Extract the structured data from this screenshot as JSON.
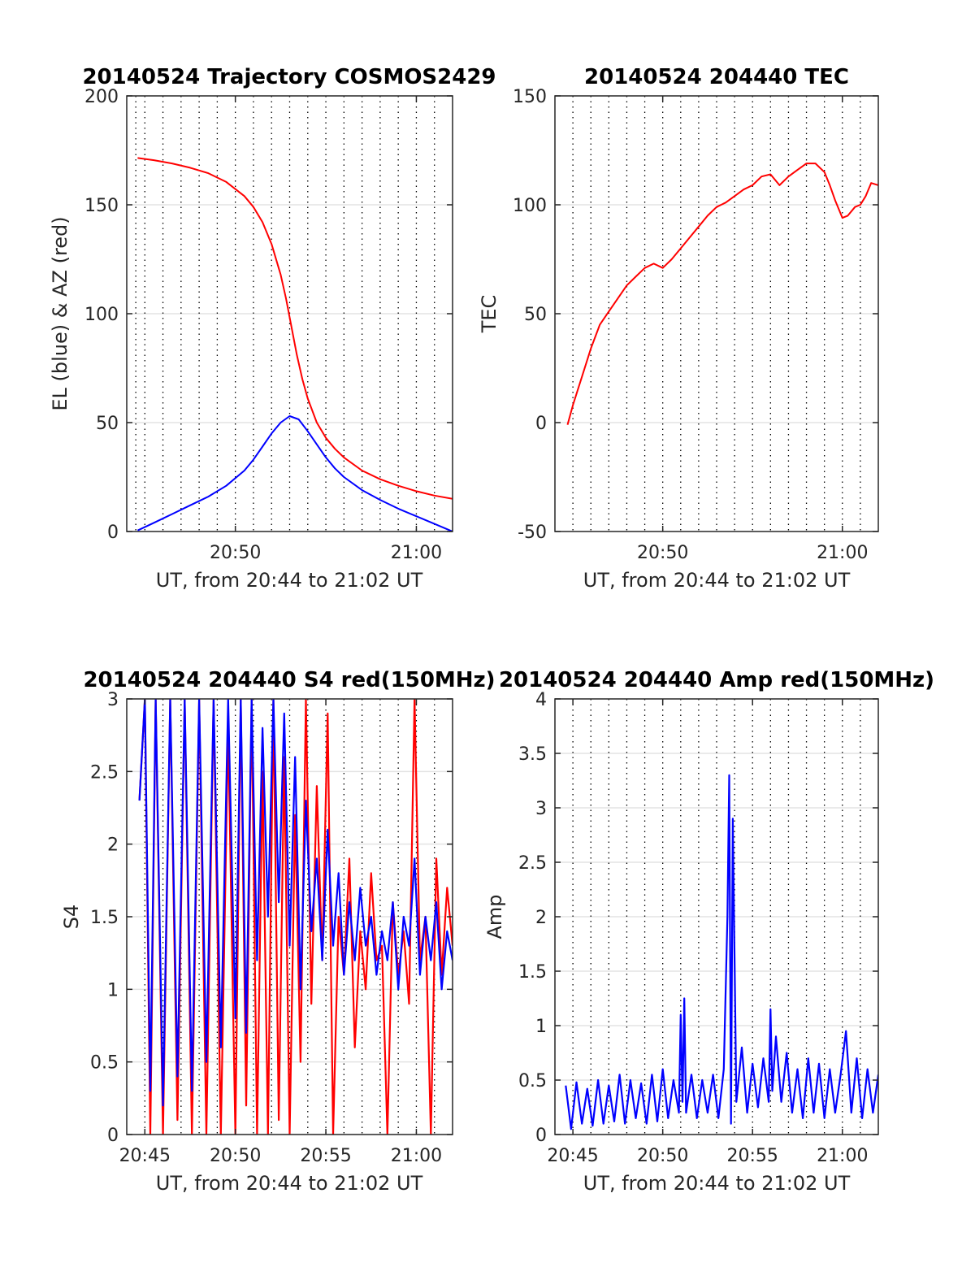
{
  "chart_data": [
    {
      "id": "traj",
      "type": "line",
      "title": "20140524 Trajectory COSMOS2429",
      "xlabel": "UT, from 20:44 to 21:02 UT",
      "ylabel": "EL (blue) & AZ (red)",
      "xlim": [
        44,
        62
      ],
      "ylim": [
        0,
        200
      ],
      "yticks": [
        0,
        50,
        100,
        150,
        200
      ],
      "xticks": [
        {
          "v": 50,
          "label": "20:50"
        },
        {
          "v": 60,
          "label": "21:00"
        }
      ],
      "vgrid_dotted": [
        44.5,
        45,
        46,
        47,
        48,
        49,
        50,
        51,
        52,
        53,
        54,
        55,
        56,
        57,
        58,
        59,
        60,
        61
      ],
      "hgrid": [
        50,
        100,
        150
      ],
      "series": [
        {
          "color": "#ff0000",
          "x": [
            44.6,
            45.5,
            46.5,
            47.5,
            48.5,
            49.5,
            50.5,
            51.0,
            51.5,
            52.0,
            52.5,
            52.8,
            53.1,
            53.4,
            53.7,
            54.0,
            54.5,
            55.0,
            55.5,
            56.0,
            57.0,
            58.0,
            59.0,
            60.0,
            61.0,
            62.0
          ],
          "y": [
            171.5,
            170.5,
            169,
            167,
            164.5,
            160.5,
            154,
            149,
            142,
            132,
            118,
            107,
            94,
            81,
            70,
            61,
            50,
            43,
            38,
            34,
            28,
            24,
            21,
            18.5,
            16.5,
            15
          ]
        },
        {
          "color": "#0000ff",
          "x": [
            44.6,
            45.5,
            46.5,
            47.5,
            48.5,
            49.5,
            50.5,
            51.0,
            51.5,
            52.0,
            52.5,
            53.0,
            53.5,
            54.0,
            54.5,
            55.0,
            55.5,
            56.0,
            57.0,
            58.0,
            59.0,
            60.0,
            61.0,
            62.0
          ],
          "y": [
            0.5,
            4,
            8,
            12,
            16,
            21,
            28,
            33,
            39,
            45,
            50,
            53,
            51.5,
            46,
            40,
            34,
            29,
            25,
            19,
            14.5,
            10.5,
            7,
            3.5,
            0
          ]
        }
      ]
    },
    {
      "id": "tec",
      "type": "line",
      "title": "20140524 204440 TEC",
      "xlabel": "UT, from 20:44 to 21:02 UT",
      "ylabel": "TEC",
      "xlim": [
        44,
        62
      ],
      "ylim": [
        -50,
        150
      ],
      "yticks": [
        -50,
        0,
        50,
        100,
        150
      ],
      "xticks": [
        {
          "v": 50,
          "label": "20:50"
        },
        {
          "v": 60,
          "label": "21:00"
        }
      ],
      "vgrid_dotted": [
        45,
        46,
        47,
        48,
        49,
        50,
        51,
        52,
        53,
        54,
        55,
        56,
        57,
        58,
        59,
        60,
        61
      ],
      "hgrid": [
        0,
        50,
        100
      ],
      "series": [
        {
          "color": "#ff0000",
          "x": [
            44.7,
            45.0,
            45.5,
            46.0,
            46.5,
            47.0,
            47.5,
            48.0,
            48.5,
            49.0,
            49.5,
            50.0,
            50.5,
            51.0,
            51.5,
            52.0,
            52.5,
            53.0,
            53.5,
            54.0,
            54.5,
            55.0,
            55.5,
            56.0,
            56.5,
            57.0,
            57.5,
            58.0,
            58.5,
            59.0,
            59.3,
            59.6,
            60.0,
            60.3,
            60.7,
            61.0,
            61.3,
            61.6,
            62.0
          ],
          "y": [
            -1,
            8,
            21,
            34,
            45,
            51,
            57,
            63,
            67,
            71,
            73,
            71,
            75,
            80,
            85,
            90,
            95,
            99,
            101,
            104,
            107,
            109,
            113,
            114,
            109,
            113,
            116,
            119,
            119,
            115,
            109,
            102,
            94,
            95,
            99,
            100,
            104,
            110,
            109
          ]
        }
      ]
    },
    {
      "id": "s4",
      "type": "line",
      "title": "20140524 204440 S4 red(150MHz)",
      "xlabel": "UT, from 20:44 to 21:02 UT",
      "ylabel": "S4",
      "xlim": [
        44,
        62
      ],
      "ylim": [
        0,
        3
      ],
      "yticks": [
        0,
        0.5,
        1,
        1.5,
        2,
        2.5,
        3
      ],
      "ytick_labels": [
        "0",
        "0.5",
        "1",
        "1.5",
        "2",
        "2.5",
        "3"
      ],
      "xticks": [
        {
          "v": 45,
          "label": "20:45"
        },
        {
          "v": 50,
          "label": "20:50"
        },
        {
          "v": 55,
          "label": "20:55"
        },
        {
          "v": 60,
          "label": "21:00"
        }
      ],
      "vgrid_dotted": [
        45,
        46,
        47,
        48,
        49,
        50,
        51,
        52,
        53,
        54,
        55,
        56,
        57,
        58,
        59,
        60,
        61
      ],
      "hgrid": [
        0.5,
        1,
        1.5,
        2,
        2.5
      ],
      "series": [
        {
          "color": "#ff0000",
          "x": [
            44.7,
            45.0,
            45.3,
            45.6,
            46.0,
            46.4,
            46.8,
            47.2,
            47.6,
            48.0,
            48.4,
            48.8,
            49.2,
            49.6,
            50.0,
            50.3,
            50.6,
            50.9,
            51.2,
            51.5,
            51.8,
            52.1,
            52.4,
            52.7,
            53.0,
            53.3,
            53.6,
            53.9,
            54.2,
            54.5,
            54.8,
            55.1,
            55.4,
            55.7,
            56.0,
            56.3,
            56.6,
            56.9,
            57.2,
            57.5,
            57.8,
            58.1,
            58.4,
            58.7,
            59.0,
            59.3,
            59.6,
            59.9,
            60.2,
            60.5,
            60.8,
            61.1,
            61.4,
            61.7,
            62.0
          ],
          "y": [
            2.3,
            3,
            0,
            3,
            0,
            3,
            0.1,
            3,
            0,
            3,
            0,
            3,
            0,
            2.8,
            0,
            3,
            0.2,
            3,
            0,
            2.5,
            0,
            3,
            0.1,
            2.6,
            0,
            2.2,
            0.5,
            3,
            0.9,
            2.4,
            1.2,
            2.9,
            0,
            1.5,
            1.1,
            1.9,
            0.6,
            1.4,
            1.0,
            1.8,
            1.2,
            1.3,
            0,
            1.6,
            1.1,
            1.4,
            0.9,
            3,
            1.2,
            1.5,
            0,
            1.9,
            1.1,
            1.7,
            1.3
          ]
        },
        {
          "color": "#0000ff",
          "x": [
            44.7,
            45.0,
            45.3,
            45.6,
            46.0,
            46.4,
            46.8,
            47.2,
            47.6,
            48.0,
            48.4,
            48.8,
            49.2,
            49.6,
            50.0,
            50.3,
            50.6,
            50.9,
            51.2,
            51.5,
            51.8,
            52.1,
            52.4,
            52.7,
            53.0,
            53.3,
            53.6,
            53.9,
            54.2,
            54.5,
            54.8,
            55.1,
            55.4,
            55.7,
            56.0,
            56.3,
            56.6,
            56.9,
            57.2,
            57.5,
            57.8,
            58.1,
            58.4,
            58.7,
            59.0,
            59.3,
            59.6,
            59.9,
            60.2,
            60.5,
            60.8,
            61.1,
            61.4,
            61.7,
            62.0
          ],
          "y": [
            2.3,
            3,
            0.3,
            3,
            0.2,
            3,
            0.4,
            3,
            0.3,
            3,
            0.5,
            3,
            0.6,
            3,
            0.8,
            3,
            0.7,
            3,
            1.2,
            2.8,
            1.5,
            3,
            1.6,
            2.9,
            1.3,
            2.6,
            1.0,
            2.3,
            1.4,
            1.9,
            1.2,
            2.1,
            1.3,
            1.8,
            1.1,
            1.6,
            1.2,
            1.7,
            1.3,
            1.5,
            1.1,
            1.4,
            1.2,
            1.6,
            1.0,
            1.5,
            1.3,
            1.9,
            1.1,
            1.5,
            1.2,
            1.6,
            1.0,
            1.4,
            1.2
          ]
        }
      ]
    },
    {
      "id": "amp",
      "type": "line",
      "title": "20140524 204440 Amp red(150MHz)",
      "xlabel": "UT, from 20:44 to 21:02 UT",
      "ylabel": "Amp",
      "xlim": [
        44,
        62
      ],
      "ylim": [
        0,
        4
      ],
      "yticks": [
        0,
        0.5,
        1,
        1.5,
        2,
        2.5,
        3,
        3.5,
        4
      ],
      "ytick_labels": [
        "0",
        "0.5",
        "1",
        "1.5",
        "2",
        "2.5",
        "3",
        "3.5",
        "4"
      ],
      "xticks": [
        {
          "v": 45,
          "label": "20:45"
        },
        {
          "v": 50,
          "label": "20:50"
        },
        {
          "v": 55,
          "label": "20:55"
        },
        {
          "v": 60,
          "label": "21:00"
        }
      ],
      "vgrid_dotted": [
        45,
        46,
        47,
        48,
        49,
        50,
        51,
        52,
        53,
        54,
        55,
        56,
        57,
        58,
        59,
        60,
        61
      ],
      "hgrid": [
        0.5,
        1,
        1.5,
        2,
        2.5,
        3,
        3.5
      ],
      "series": [
        {
          "color": "#0000ff",
          "x": [
            44.6,
            44.9,
            45.2,
            45.5,
            45.8,
            46.1,
            46.4,
            46.7,
            47.0,
            47.3,
            47.6,
            47.9,
            48.2,
            48.5,
            48.8,
            49.1,
            49.4,
            49.7,
            50.0,
            50.3,
            50.6,
            50.9,
            51.0,
            51.1,
            51.2,
            51.3,
            51.6,
            51.9,
            52.2,
            52.5,
            52.8,
            53.1,
            53.4,
            53.6,
            53.7,
            53.8,
            53.9,
            54.1,
            54.4,
            54.7,
            55.0,
            55.3,
            55.6,
            55.9,
            56.0,
            56.1,
            56.3,
            56.6,
            56.9,
            57.2,
            57.5,
            57.8,
            58.1,
            58.4,
            58.7,
            59.0,
            59.3,
            59.6,
            59.9,
            60.2,
            60.5,
            60.8,
            61.1,
            61.4,
            61.7,
            62.0
          ],
          "y": [
            0.45,
            0.05,
            0.48,
            0.1,
            0.42,
            0.08,
            0.5,
            0.1,
            0.45,
            0.12,
            0.55,
            0.1,
            0.5,
            0.15,
            0.47,
            0.1,
            0.55,
            0.12,
            0.6,
            0.15,
            0.5,
            0.2,
            1.1,
            0.3,
            1.25,
            0.2,
            0.55,
            0.15,
            0.5,
            0.2,
            0.55,
            0.15,
            0.6,
            2.0,
            3.3,
            0.1,
            2.9,
            0.3,
            0.8,
            0.2,
            0.65,
            0.25,
            0.7,
            0.3,
            1.15,
            0.4,
            0.9,
            0.3,
            0.75,
            0.2,
            0.6,
            0.15,
            0.7,
            0.2,
            0.65,
            0.15,
            0.6,
            0.2,
            0.55,
            0.95,
            0.2,
            0.7,
            0.15,
            0.6,
            0.2,
            0.55
          ]
        }
      ]
    }
  ]
}
